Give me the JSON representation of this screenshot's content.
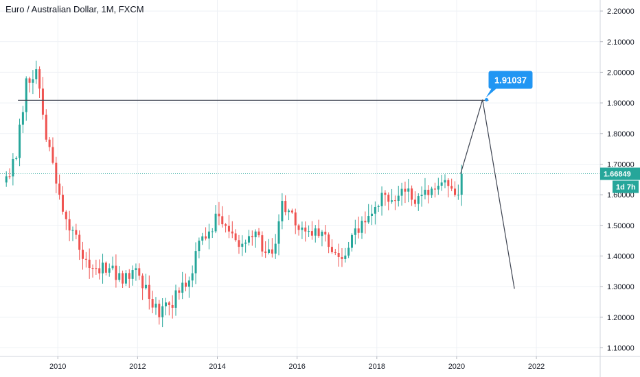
{
  "chart_title": "Euro / Australian Dollar, 1M, FXCM",
  "colors": {
    "up": "#26a69a",
    "down": "#ef5350",
    "grid": "#eef1f5",
    "axis": "#8e95a3",
    "accent": "#2196f3",
    "drawing": "#3d4350",
    "price_line": "#26a69a"
  },
  "chart_data": {
    "type": "candlestick",
    "title": "Euro / Australian Dollar, 1M, FXCM",
    "xlabel": "",
    "ylabel": "",
    "xlim": [
      2008.55,
      2023.6
    ],
    "ylim": [
      1.072,
      2.236
    ],
    "x_ticks": [
      2010,
      2012,
      2014,
      2016,
      2018,
      2020,
      2022
    ],
    "x_tick_labels": [
      "2010",
      "2012",
      "2014",
      "2016",
      "2018",
      "2020",
      "2022"
    ],
    "y_ticks": [
      1.1,
      1.2,
      1.3,
      1.4,
      1.5,
      1.6,
      1.7,
      1.8,
      1.9,
      2.0,
      2.1,
      2.2
    ],
    "y_tick_labels": [
      "1.10000",
      "1.20000",
      "1.30000",
      "1.40000",
      "1.50000",
      "1.60000",
      "1.70000",
      "1.80000",
      "1.90000",
      "2.00000",
      "2.10000",
      "2.20000"
    ],
    "grid": true,
    "current_price": 1.66849,
    "current_price_label": "1.66849",
    "countdown_label": "1d 7h",
    "drawings": {
      "horizontal_line": {
        "y": 1.9085,
        "x": [
          2009.0,
          2020.8
        ]
      },
      "projection": [
        {
          "x": 2020.1,
          "y": 1.6685
        },
        {
          "x": 2020.65,
          "y": 1.91037
        },
        {
          "x": 2021.45,
          "y": 1.293
        }
      ],
      "marker": {
        "x": 2020.75,
        "y": 1.91037,
        "label": "1.91037"
      }
    },
    "anchors": [
      [
        "2008-09",
        1.66
      ],
      [
        "2008-12",
        1.72
      ],
      [
        "2009-03",
        1.98
      ],
      [
        "2009-06",
        2.01
      ],
      [
        "2009-09",
        1.78
      ],
      [
        "2010-01",
        1.6
      ],
      [
        "2010-03",
        1.52
      ],
      [
        "2010-07",
        1.42
      ],
      [
        "2010-12",
        1.36
      ],
      [
        "2011-04",
        1.36
      ],
      [
        "2011-08",
        1.31
      ],
      [
        "2011-12",
        1.36
      ],
      [
        "2012-04",
        1.26
      ],
      [
        "2012-07",
        1.2
      ],
      [
        "2012-10",
        1.24
      ],
      [
        "2013-01",
        1.28
      ],
      [
        "2013-04",
        1.32
      ],
      [
        "2013-07",
        1.45
      ],
      [
        "2013-10",
        1.48
      ],
      [
        "2014-01",
        1.53
      ],
      [
        "2014-04",
        1.48
      ],
      [
        "2014-07",
        1.43
      ],
      [
        "2014-12",
        1.48
      ],
      [
        "2015-03",
        1.41
      ],
      [
        "2015-06",
        1.44
      ],
      [
        "2015-08",
        1.58
      ],
      [
        "2015-12",
        1.5
      ],
      [
        "2016-03",
        1.48
      ],
      [
        "2016-06",
        1.49
      ],
      [
        "2016-09",
        1.47
      ],
      [
        "2016-12",
        1.41
      ],
      [
        "2017-02",
        1.39
      ],
      [
        "2017-06",
        1.49
      ],
      [
        "2017-09",
        1.51
      ],
      [
        "2017-12",
        1.56
      ],
      [
        "2018-03",
        1.6
      ],
      [
        "2018-06",
        1.58
      ],
      [
        "2018-09",
        1.61
      ],
      [
        "2018-12",
        1.57
      ],
      [
        "2019-02",
        1.6
      ],
      [
        "2019-05",
        1.62
      ],
      [
        "2019-08",
        1.64
      ],
      [
        "2019-11",
        1.62
      ],
      [
        "2020-01",
        1.6
      ],
      [
        "2020-02",
        1.66849
      ]
    ]
  }
}
